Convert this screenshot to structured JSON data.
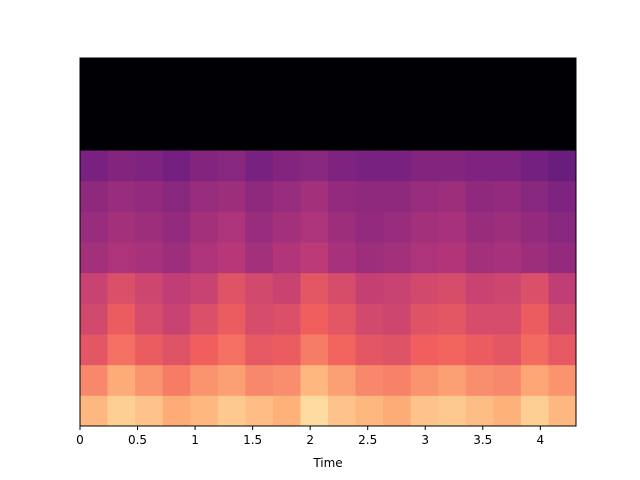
{
  "chart_data": {
    "type": "heatmap",
    "xlabel": "Time",
    "xlim": [
      0,
      4.31
    ],
    "xticks": [
      0,
      0.5,
      1,
      1.5,
      2,
      2.5,
      3,
      3.5,
      4
    ],
    "zlim": [
      -80,
      0
    ],
    "colormap": "magma",
    "values": [
      [
        -12,
        -8,
        -10,
        -14,
        -12,
        -9,
        -11,
        -13,
        -6,
        -10,
        -12,
        -14,
        -10,
        -9,
        -11,
        -13,
        -8,
        -12
      ],
      [
        -20,
        -14,
        -18,
        -22,
        -18,
        -16,
        -20,
        -19,
        -12,
        -16,
        -20,
        -21,
        -18,
        -16,
        -19,
        -20,
        -15,
        -18
      ],
      [
        -30,
        -24,
        -28,
        -31,
        -27,
        -24,
        -29,
        -28,
        -22,
        -26,
        -30,
        -31,
        -27,
        -26,
        -28,
        -30,
        -25,
        -29
      ],
      [
        -34,
        -28,
        -33,
        -36,
        -32,
        -28,
        -33,
        -32,
        -27,
        -30,
        -34,
        -35,
        -31,
        -30,
        -33,
        -33,
        -28,
        -34
      ],
      [
        -36,
        -32,
        -35,
        -38,
        -36,
        -31,
        -34,
        -36,
        -30,
        -33,
        -37,
        -36,
        -34,
        -33,
        -36,
        -35,
        -32,
        -38
      ],
      [
        -44,
        -42,
        -43,
        -45,
        -42,
        -40,
        -44,
        -41,
        -39,
        -43,
        -45,
        -44,
        -42,
        -41,
        -44,
        -43,
        -45,
        -47
      ],
      [
        -46,
        -44,
        -45,
        -47,
        -44,
        -42,
        -46,
        -44,
        -42,
        -45,
        -47,
        -46,
        -44,
        -43,
        -46,
        -45,
        -47,
        -49
      ],
      [
        -48,
        -46,
        -47,
        -49,
        -46,
        -45,
        -48,
        -46,
        -44,
        -47,
        -48,
        -48,
        -46,
        -45,
        -48,
        -47,
        -49,
        -51
      ],
      [
        -52,
        -50,
        -51,
        -53,
        -50,
        -49,
        -52,
        -50,
        -49,
        -51,
        -52,
        -52,
        -50,
        -50,
        -51,
        -51,
        -53,
        -55
      ],
      [
        -80,
        -80,
        -80,
        -80,
        -80,
        -80,
        -80,
        -80,
        -80,
        -80,
        -80,
        -80,
        -80,
        -80,
        -80,
        -80,
        -80,
        -80
      ],
      [
        -80,
        -80,
        -80,
        -80,
        -80,
        -80,
        -80,
        -80,
        -80,
        -80,
        -80,
        -80,
        -80,
        -80,
        -80,
        -80,
        -80,
        -80
      ],
      [
        -80,
        -80,
        -80,
        -80,
        -80,
        -80,
        -80,
        -80,
        -80,
        -80,
        -80,
        -80,
        -80,
        -80,
        -80,
        -80,
        -80,
        -80
      ]
    ]
  }
}
